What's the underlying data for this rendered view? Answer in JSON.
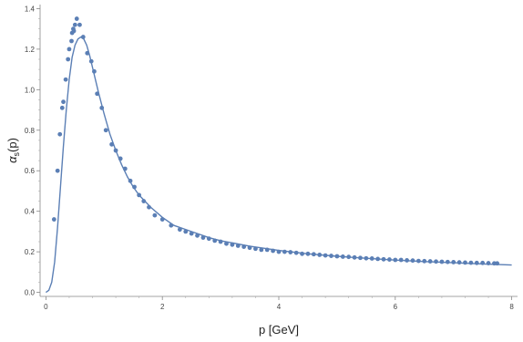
{
  "chart_data": {
    "type": "scatter",
    "xlabel": "p [GeV]",
    "ylabel": {
      "base": "α",
      "subscript": "s",
      "suffix": "(p)"
    },
    "xlim": [
      -0.1,
      8.1
    ],
    "ylim": [
      -0.02,
      1.42
    ],
    "x_ticks": [
      0,
      2,
      4,
      6,
      8
    ],
    "x_tick_labels": [
      "0",
      "2",
      "4",
      "6",
      "8"
    ],
    "y_ticks": [
      0.0,
      0.2,
      0.4,
      0.6,
      0.8,
      1.0,
      1.2,
      1.4
    ],
    "y_tick_labels": [
      "0.0",
      "0.2",
      "0.4",
      "0.6",
      "0.8",
      "1.0",
      "1.2",
      "1.4"
    ],
    "grid": false,
    "marker_color": "#5b7fb5",
    "series": [
      {
        "kind": "points",
        "x": [
          0.14,
          0.2,
          0.24,
          0.28,
          0.3,
          0.34,
          0.38,
          0.4,
          0.44,
          0.45,
          0.47,
          0.48,
          0.5,
          0.53,
          0.58,
          0.64,
          0.71,
          0.78,
          0.83,
          0.88,
          0.96,
          1.03,
          1.13,
          1.2,
          1.28,
          1.36,
          1.45,
          1.52,
          1.6,
          1.68,
          1.77,
          1.87,
          2.0,
          2.15,
          2.3,
          2.4,
          2.5,
          2.6,
          2.7,
          2.8,
          2.9,
          3.0,
          3.1,
          3.2,
          3.3,
          3.4,
          3.5,
          3.6,
          3.7,
          3.8,
          3.9,
          4.0,
          4.1,
          4.2,
          4.3,
          4.4,
          4.5,
          4.6,
          4.7,
          4.8,
          4.9,
          5.0,
          5.1,
          5.2,
          5.3,
          5.4,
          5.5,
          5.6,
          5.7,
          5.8,
          5.9,
          6.0,
          6.1,
          6.2,
          6.3,
          6.4,
          6.5,
          6.6,
          6.7,
          6.8,
          6.9,
          7.0,
          7.1,
          7.2,
          7.3,
          7.4,
          7.5,
          7.6,
          7.7,
          7.75
        ],
        "y": [
          0.36,
          0.6,
          0.78,
          0.91,
          0.94,
          1.05,
          1.15,
          1.2,
          1.24,
          1.28,
          1.3,
          1.29,
          1.32,
          1.35,
          1.32,
          1.26,
          1.18,
          1.14,
          1.09,
          0.98,
          0.91,
          0.8,
          0.73,
          0.7,
          0.66,
          0.61,
          0.55,
          0.52,
          0.48,
          0.45,
          0.42,
          0.38,
          0.36,
          0.33,
          0.31,
          0.3,
          0.29,
          0.28,
          0.27,
          0.265,
          0.255,
          0.25,
          0.24,
          0.235,
          0.23,
          0.225,
          0.22,
          0.215,
          0.21,
          0.21,
          0.205,
          0.2,
          0.2,
          0.198,
          0.195,
          0.19,
          0.19,
          0.188,
          0.185,
          0.182,
          0.18,
          0.178,
          0.176,
          0.175,
          0.172,
          0.17,
          0.168,
          0.167,
          0.165,
          0.163,
          0.162,
          0.16,
          0.16,
          0.158,
          0.157,
          0.155,
          0.154,
          0.153,
          0.152,
          0.151,
          0.15,
          0.149,
          0.148,
          0.147,
          0.146,
          0.145,
          0.145,
          0.144,
          0.143,
          0.143
        ]
      },
      {
        "kind": "curve",
        "x": [
          0.0,
          0.05,
          0.1,
          0.15,
          0.2,
          0.25,
          0.3,
          0.35,
          0.4,
          0.45,
          0.5,
          0.55,
          0.6,
          0.65,
          0.7,
          0.75,
          0.8,
          0.9,
          1.0,
          1.1,
          1.2,
          1.3,
          1.4,
          1.5,
          1.6,
          1.8,
          2.0,
          2.2,
          2.5,
          2.8,
          3.0,
          3.5,
          4.0,
          4.5,
          5.0,
          5.5,
          6.0,
          6.5,
          7.0,
          7.5,
          8.0
        ],
        "y": [
          0.0,
          0.01,
          0.05,
          0.15,
          0.32,
          0.52,
          0.72,
          0.9,
          1.05,
          1.16,
          1.22,
          1.25,
          1.26,
          1.25,
          1.22,
          1.17,
          1.11,
          0.99,
          0.88,
          0.78,
          0.7,
          0.63,
          0.57,
          0.52,
          0.48,
          0.42,
          0.37,
          0.33,
          0.3,
          0.27,
          0.255,
          0.228,
          0.207,
          0.19,
          0.178,
          0.168,
          0.159,
          0.152,
          0.146,
          0.14,
          0.135
        ]
      }
    ]
  }
}
